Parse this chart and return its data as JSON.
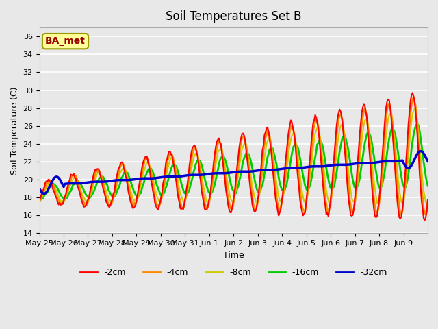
{
  "title": "Soil Temperatures Set B",
  "xlabel": "Time",
  "ylabel": "Soil Temperature (C)",
  "ylim": [
    14,
    37
  ],
  "yticks": [
    14,
    16,
    18,
    20,
    22,
    24,
    26,
    28,
    30,
    32,
    34,
    36
  ],
  "bg_color": "#e8e8e8",
  "annotation_text": "BA_met",
  "annotation_bg": "#ffff99",
  "annotation_border": "#999900",
  "annotation_text_color": "#990000",
  "series_colors": {
    "-2cm": "#ff0000",
    "-4cm": "#ff8800",
    "-8cm": "#cccc00",
    "-16cm": "#00cc00",
    "-32cm": "#0000cc"
  },
  "series_linewidths": {
    "-2cm": 1.5,
    "-4cm": 2.0,
    "-8cm": 1.5,
    "-16cm": 2.0,
    "-32cm": 2.5
  },
  "xtick_labels": [
    "May 25",
    "May 26",
    "May 27",
    "May 28",
    "May 29",
    "May 30",
    "May 31",
    "Jun 1",
    "Jun 2",
    "Jun 3",
    "Jun 4",
    "Jun 5",
    "Jun 6",
    "Jun 7",
    "Jun 8",
    "Jun 9"
  ],
  "num_points": 384,
  "num_days": 16
}
